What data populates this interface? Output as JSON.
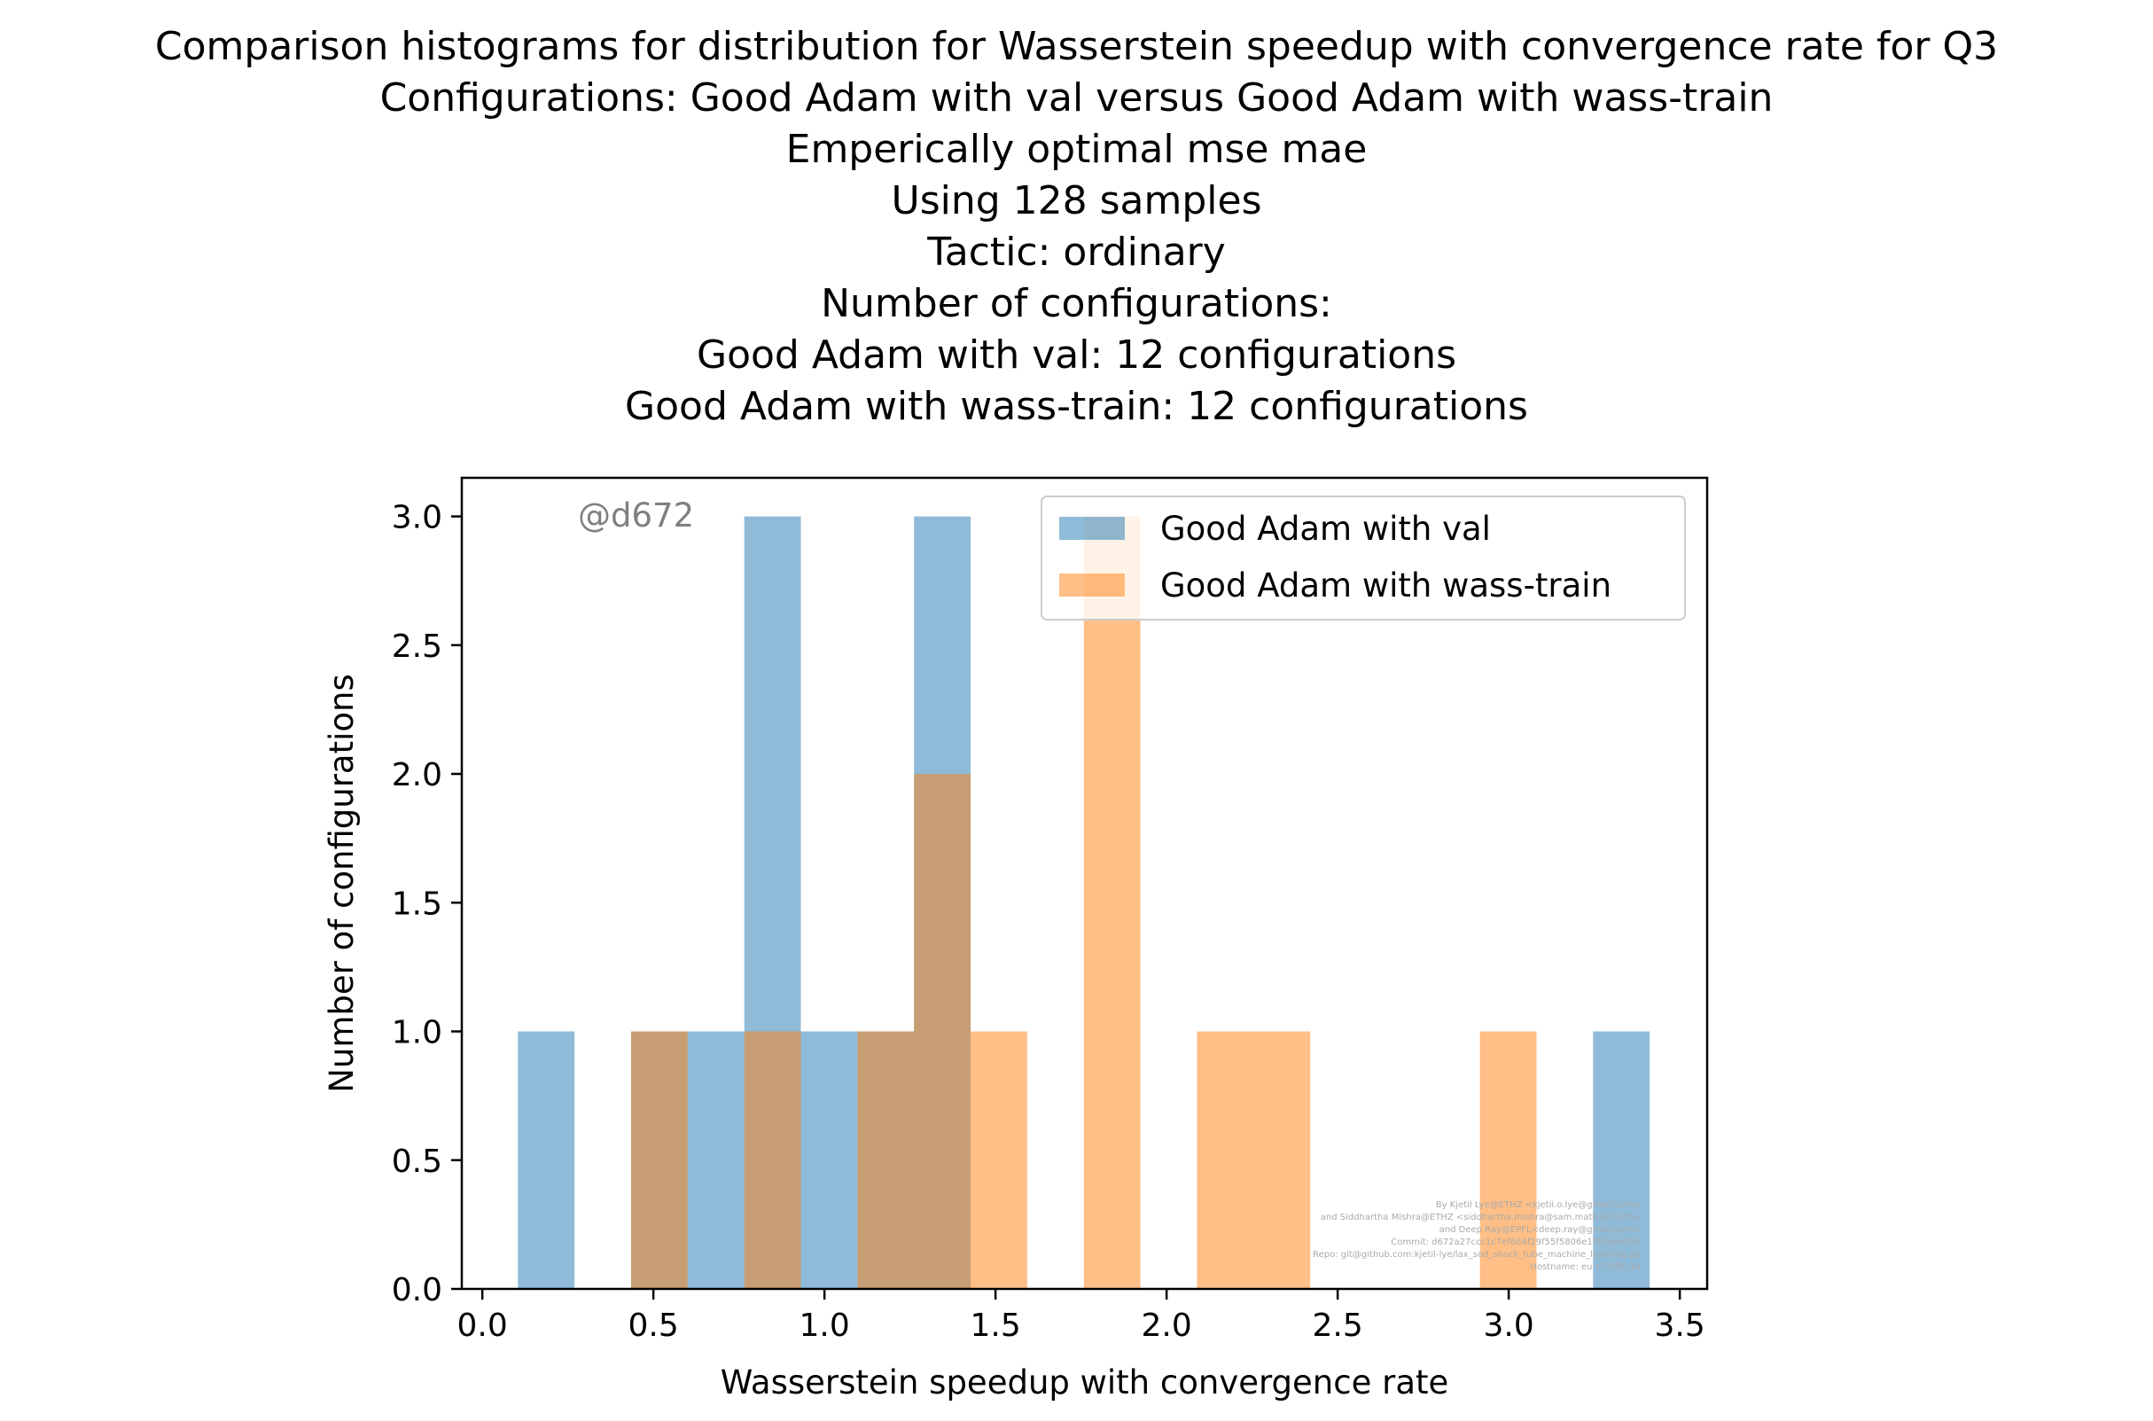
{
  "chart_data": {
    "type": "bar",
    "title": [
      "Comparison histograms for distribution for Wasserstein speedup with convergence rate for Q3",
      "Configurations: Good Adam with val versus Good Adam with wass-train",
      "Emperically optimal mse mae",
      "Using 128 samples",
      "Tactic: ordinary",
      "Number of configurations:",
      "Good Adam with val: 12 configurations",
      "Good Adam with wass-train: 12 configurations"
    ],
    "xlabel": "Wasserstein speedup with convergence rate",
    "ylabel": "Number of configurations",
    "xlim": [
      -0.06,
      3.58
    ],
    "ylim": [
      0,
      3.15
    ],
    "xticks": [
      "0.0",
      "0.5",
      "1.0",
      "1.5",
      "2.0",
      "2.5",
      "3.0",
      "3.5"
    ],
    "yticks": [
      "0.0",
      "0.5",
      "1.0",
      "1.5",
      "2.0",
      "2.5",
      "3.0"
    ],
    "bin_edges": [
      0.104,
      0.2694,
      0.4348,
      0.6002,
      0.7656,
      0.931,
      1.0964,
      1.2618,
      1.4272,
      1.5926,
      1.758,
      1.9234,
      2.0888,
      2.2542,
      2.4196,
      2.585,
      2.7504,
      2.9158,
      3.0812,
      3.2466,
      3.412
    ],
    "series": [
      {
        "name": "Good Adam with val",
        "color": "#1f77b4",
        "counts": [
          1,
          0,
          1,
          1,
          3,
          1,
          1,
          3,
          0,
          0,
          0,
          0,
          0,
          0,
          0,
          0,
          0,
          0,
          0,
          1
        ]
      },
      {
        "name": "Good Adam with wass-train",
        "color": "#ff7f0e",
        "counts": [
          0,
          0,
          1,
          0,
          1,
          0,
          1,
          2,
          1,
          0,
          3,
          0,
          1,
          1,
          0,
          0,
          0,
          1,
          0,
          0
        ]
      }
    ],
    "legend_position": "upper right",
    "grid": false,
    "watermark": "@d672",
    "credit_lines": [
      "By Kjetil Lye@ETHZ <kjetil.o.lye@gmail.com>",
      "and Siddhartha Mishra@ETHZ <siddhartha.mishra@sam.math.ethz.ch>",
      "and Deep Ray@EPFL<deep.ray@gmail.com>",
      "Commit: d672a27ccc1c7ef664f29f55f5806e1f93ab652b",
      "Repo: git@github.com:kjetil-lye/lax_sod_shock_tube_machine_learning.git",
      "Hostname: eu-c7-056-14"
    ]
  }
}
